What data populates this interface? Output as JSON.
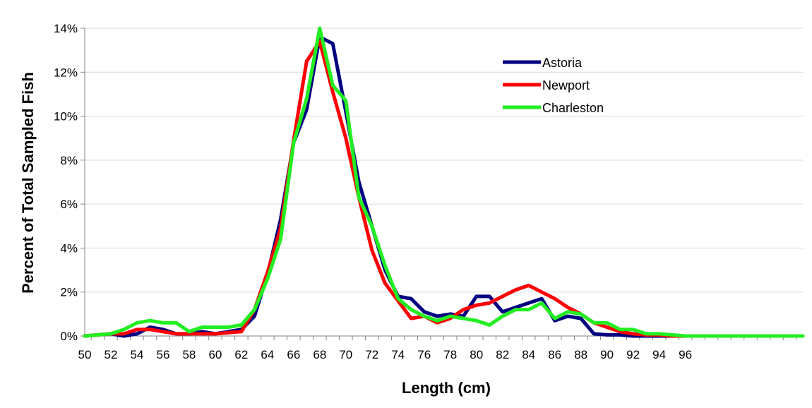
{
  "chart_data": {
    "type": "line",
    "title": "",
    "xlabel": "Length (cm)",
    "ylabel": "Percent of Total Sampled Fish",
    "xlim": [
      50,
      105
    ],
    "ylim": [
      0,
      14
    ],
    "x_tick_labels": [
      "50",
      "52",
      "54",
      "56",
      "58",
      "60",
      "62",
      "64",
      "66",
      "68",
      "70",
      "72",
      "74",
      "76",
      "78",
      "80",
      "82",
      "84",
      "86",
      "88",
      "90",
      "92",
      "94",
      "96"
    ],
    "y_tick_labels": [
      "0%",
      "2%",
      "4%",
      "6%",
      "8%",
      "10%",
      "12%",
      "14%"
    ],
    "y_ticks": [
      0,
      2,
      4,
      6,
      8,
      10,
      12,
      14
    ],
    "grid": "horizontal",
    "legend_position": "top-right",
    "x": [
      50,
      51,
      52,
      53,
      54,
      55,
      56,
      57,
      58,
      59,
      60,
      61,
      62,
      63,
      64,
      65,
      66,
      67,
      68,
      69,
      70,
      71,
      72,
      73,
      74,
      75,
      76,
      77,
      78,
      79,
      80,
      81,
      82,
      83,
      84,
      85,
      86,
      87,
      88,
      89,
      90,
      91,
      92,
      93,
      94,
      95,
      96,
      97,
      98,
      99,
      100,
      101,
      102,
      103,
      104,
      105
    ],
    "series": [
      {
        "name": "Astoria",
        "color": "#000080",
        "values": [
          0,
          0.05,
          0.1,
          0,
          0.1,
          0.4,
          0.3,
          0.1,
          0.1,
          0.2,
          0.1,
          0.2,
          0.3,
          0.9,
          2.8,
          5.3,
          8.8,
          10.3,
          13.6,
          13.3,
          10.2,
          7.0,
          5.0,
          3.0,
          1.8,
          1.7,
          1.1,
          0.9,
          1.0,
          0.9,
          1.8,
          1.8,
          1.1,
          1.3,
          1.5,
          1.7,
          0.7,
          0.9,
          0.8,
          0.1,
          0.05,
          0.05,
          0,
          0,
          0,
          0,
          0,
          0,
          0,
          0,
          0,
          0,
          0,
          0,
          0,
          0
        ]
      },
      {
        "name": "Newport",
        "color": "#FF0000",
        "values": [
          0,
          0.05,
          0.1,
          0.1,
          0.3,
          0.3,
          0.2,
          0.1,
          0.1,
          0.1,
          0.1,
          0.15,
          0.2,
          1.2,
          2.9,
          4.9,
          8.9,
          12.5,
          13.4,
          11.1,
          9.0,
          6.3,
          3.9,
          2.4,
          1.6,
          0.8,
          0.9,
          0.6,
          0.8,
          1.2,
          1.4,
          1.5,
          1.8,
          2.1,
          2.3,
          2.0,
          1.7,
          1.3,
          1.0,
          0.6,
          0.4,
          0.2,
          0.1,
          0.05,
          0.05,
          0,
          0,
          0,
          0,
          0,
          0,
          0,
          0,
          0,
          0,
          0
        ]
      },
      {
        "name": "Charleston",
        "color": "#22EE22",
        "values": [
          0,
          0.05,
          0.1,
          0.3,
          0.6,
          0.7,
          0.6,
          0.6,
          0.2,
          0.4,
          0.4,
          0.4,
          0.5,
          1.2,
          2.6,
          4.4,
          8.8,
          10.8,
          14.0,
          11.4,
          10.7,
          6.3,
          5.0,
          3.2,
          1.7,
          1.2,
          0.9,
          0.7,
          0.9,
          0.8,
          0.7,
          0.5,
          0.9,
          1.2,
          1.2,
          1.5,
          0.8,
          1.1,
          1.0,
          0.6,
          0.6,
          0.3,
          0.3,
          0.1,
          0.1,
          0.05,
          0,
          0,
          0,
          0,
          0,
          0,
          0,
          0,
          0,
          0
        ]
      }
    ]
  }
}
